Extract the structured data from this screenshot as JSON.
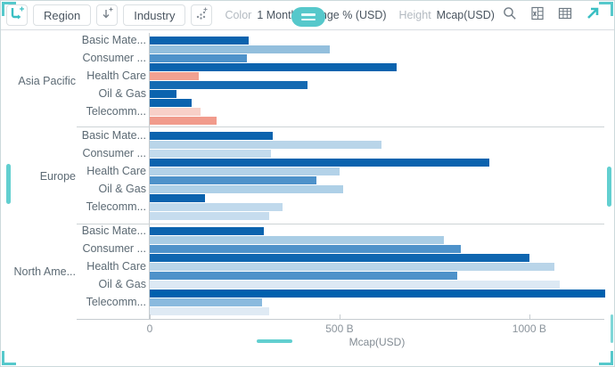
{
  "toolbar": {
    "region_breakdown": "Region",
    "industry_breakdown": "Industry",
    "color_label": "Color",
    "color_value": "1 Month Change % (USD)",
    "height_label": "Height",
    "height_value": "Mcap(USD)"
  },
  "icons": {
    "breakdown_add": "pivot-arrow-plus",
    "sort_add": "down-arrow-plus",
    "scatter_add": "dots-plus",
    "search": "magnifier",
    "excel_export": "spreadsheet",
    "table_view": "grid",
    "maximize": "diagonal-arrow",
    "drag_handle": "two-lines"
  },
  "accent_color": "#56c8cb",
  "chart_data": {
    "type": "bar",
    "orientation": "horizontal",
    "title": "",
    "xlabel": "Mcap(USD)",
    "color_encoding": "1 Month Change % (USD)",
    "height_encoding": "Mcap(USD)",
    "x_unit": "billion USD",
    "x_max": 1200,
    "x_axis": {
      "ticks": [
        {
          "label": "0",
          "value": 0
        },
        {
          "label": "500 B",
          "value": 500
        },
        {
          "label": "1000 B",
          "value": 1000
        }
      ]
    },
    "groups": [
      {
        "region": "Asia Pacific",
        "industries": [
          {
            "label": "Basic Mate...",
            "bars": [
              {
                "mcap_b": 260,
                "color": "#0b63ae"
              },
              {
                "mcap_b": 475,
                "color": "#93bfdd"
              }
            ]
          },
          {
            "label": "Consumer ...",
            "bars": [
              {
                "mcap_b": 255,
                "color": "#4e92ca"
              },
              {
                "mcap_b": 650,
                "color": "#0b63ae"
              }
            ]
          },
          {
            "label": "Health Care",
            "bars": [
              {
                "mcap_b": 130,
                "color": "#f2a191"
              },
              {
                "mcap_b": 415,
                "color": "#156ab2"
              }
            ]
          },
          {
            "label": "Oil & Gas",
            "bars": [
              {
                "mcap_b": 70,
                "color": "#0b63ae"
              },
              {
                "mcap_b": 110,
                "color": "#0b63ae"
              }
            ]
          },
          {
            "label": "Telecomm...",
            "bars": [
              {
                "mcap_b": 135,
                "color": "#f8d0c8"
              },
              {
                "mcap_b": 175,
                "color": "#f19b8c"
              }
            ]
          }
        ]
      },
      {
        "region": "Europe",
        "industries": [
          {
            "label": "Basic Mate...",
            "bars": [
              {
                "mcap_b": 325,
                "color": "#0b63ae"
              },
              {
                "mcap_b": 610,
                "color": "#b9d5e9"
              }
            ]
          },
          {
            "label": "Consumer ...",
            "bars": [
              {
                "mcap_b": 320,
                "color": "#c3dbed"
              },
              {
                "mcap_b": 895,
                "color": "#0b63ae"
              }
            ]
          },
          {
            "label": "Health Care",
            "bars": [
              {
                "mcap_b": 500,
                "color": "#b3d2e8"
              },
              {
                "mcap_b": 440,
                "color": "#4e92ca"
              }
            ]
          },
          {
            "label": "Oil & Gas",
            "bars": [
              {
                "mcap_b": 510,
                "color": "#aed0e7"
              },
              {
                "mcap_b": 145,
                "color": "#0b63ae"
              }
            ]
          },
          {
            "label": "Telecomm...",
            "bars": [
              {
                "mcap_b": 350,
                "color": "#c0d9ec"
              },
              {
                "mcap_b": 315,
                "color": "#c6dcee"
              }
            ]
          }
        ]
      },
      {
        "region": "North Ame...",
        "industries": [
          {
            "label": "Basic Mate...",
            "bars": [
              {
                "mcap_b": 300,
                "color": "#0b63ae"
              },
              {
                "mcap_b": 775,
                "color": "#a9cde5"
              }
            ]
          },
          {
            "label": "Consumer ...",
            "bars": [
              {
                "mcap_b": 820,
                "color": "#4e92ca"
              },
              {
                "mcap_b": 1000,
                "color": "#0f66b0"
              }
            ]
          },
          {
            "label": "Health Care",
            "bars": [
              {
                "mcap_b": 1065,
                "color": "#b9d5e9"
              },
              {
                "mcap_b": 810,
                "color": "#4e92ca"
              }
            ]
          },
          {
            "label": "Oil & Gas",
            "bars": [
              {
                "mcap_b": 1080,
                "color": "#dde9f4"
              },
              {
                "mcap_b": 1200,
                "color": "#0060ae"
              }
            ]
          },
          {
            "label": "Telecomm...",
            "bars": [
              {
                "mcap_b": 295,
                "color": "#8abade"
              },
              {
                "mcap_b": 315,
                "color": "#dfeaf4"
              }
            ]
          }
        ]
      }
    ]
  }
}
